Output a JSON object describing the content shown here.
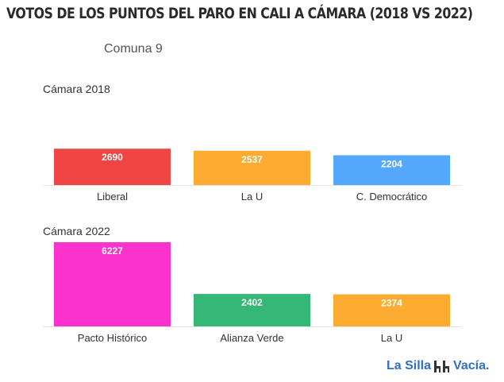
{
  "title": "VOTOS DE LOS PUNTOS DEL PARO EN CALI A CÁMARA (2018 VS 2022)",
  "subtitle": "Comuna 9",
  "chart_data": [
    {
      "type": "bar",
      "title": "Cámara 2018",
      "categories": [
        "Liberal",
        "La U",
        "C. Democrático"
      ],
      "values": [
        2690,
        2537,
        2204
      ],
      "value_labels": [
        "2690",
        "2537",
        "2204"
      ],
      "colors": [
        "#f04545",
        "#fdac32",
        "#55a9fc"
      ],
      "ylim": [
        0,
        6227
      ],
      "grid": false
    },
    {
      "type": "bar",
      "title": "Cámara 2022",
      "categories": [
        "Pacto Histórico",
        "Alianza Verde",
        "La U"
      ],
      "values": [
        6227,
        2402,
        2374
      ],
      "value_labels": [
        "6227",
        "2402",
        "2374"
      ],
      "colors": [
        "#fb32cb",
        "#35b775",
        "#fdac32"
      ],
      "ylim": [
        0,
        6227
      ],
      "grid": false
    }
  ],
  "logo": {
    "text_left": "La Silla",
    "text_right": "Vacía.",
    "icon": "chairs-icon"
  }
}
